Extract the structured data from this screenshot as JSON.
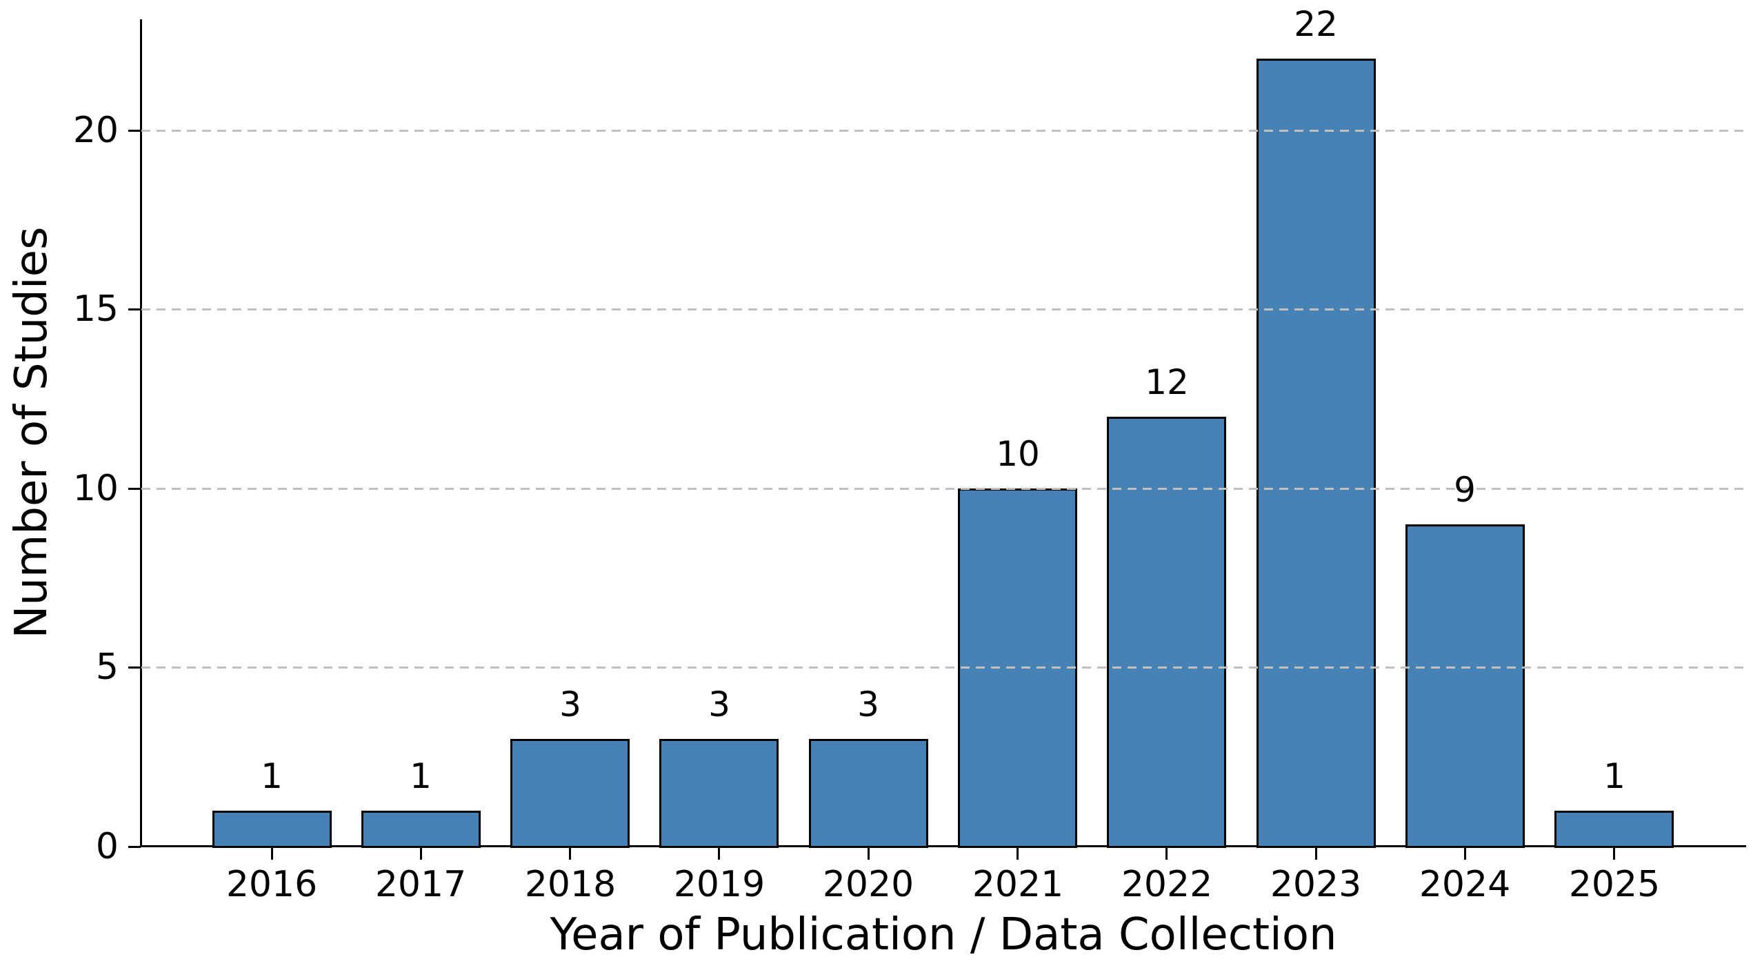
{
  "chart_data": {
    "type": "bar",
    "categories": [
      "2016",
      "2017",
      "2018",
      "2019",
      "2020",
      "2021",
      "2022",
      "2023",
      "2024",
      "2025"
    ],
    "values": [
      1,
      1,
      3,
      3,
      3,
      10,
      12,
      22,
      9,
      1
    ],
    "bar_value_labels": [
      "1",
      "1",
      "3",
      "3",
      "3",
      "10",
      "12",
      "22",
      "9",
      "1"
    ],
    "title": "",
    "xlabel": "Year of Publication / Data Collection",
    "ylabel": "Number of Studies",
    "yticks": [
      {
        "value": 0,
        "label": "0"
      },
      {
        "value": 5,
        "label": "5"
      },
      {
        "value": 10,
        "label": "10"
      },
      {
        "value": 15,
        "label": "15"
      },
      {
        "value": 20,
        "label": "20"
      }
    ],
    "ylim": [
      0,
      23.1
    ],
    "grid": {
      "axis": "y",
      "at": [
        5,
        10,
        15,
        20
      ],
      "style": "dashed",
      "drawn_above_bars": true
    },
    "legend": null,
    "colors": {
      "bar_fill": "#4682B4",
      "bar_edge": "#000000",
      "grid": "#c0c0c0",
      "text": "#000000",
      "background": "#ffffff"
    }
  }
}
